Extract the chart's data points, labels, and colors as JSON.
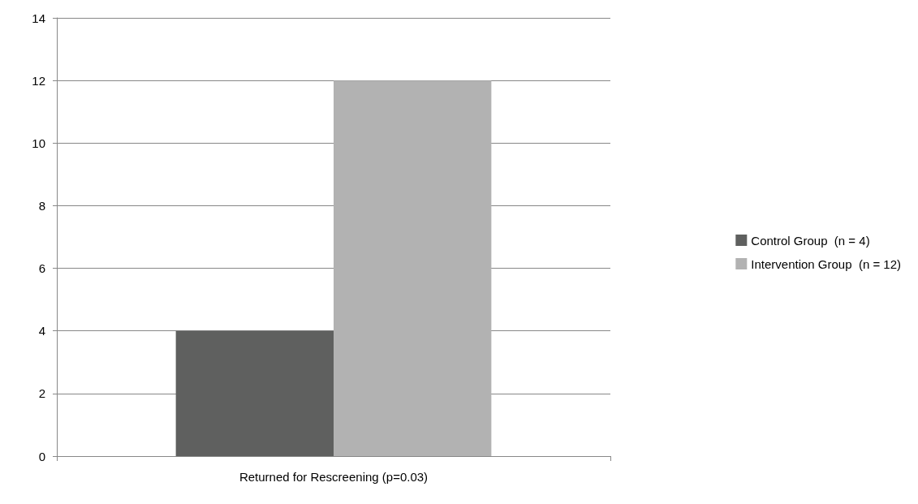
{
  "chart_data": {
    "type": "bar",
    "categories": [
      "Returned for Rescreening (p=0.03)"
    ],
    "series": [
      {
        "name": "Control Group  (n = 4)",
        "color": "#5f605f",
        "values": [
          4
        ]
      },
      {
        "name": "Intervention Group  (n = 12)",
        "color": "#b2b2b2",
        "values": [
          12
        ]
      }
    ],
    "ylim": [
      0,
      14
    ],
    "yticks": [
      0,
      2,
      4,
      6,
      8,
      10,
      12,
      14
    ],
    "grid": "y",
    "legend": "right"
  }
}
